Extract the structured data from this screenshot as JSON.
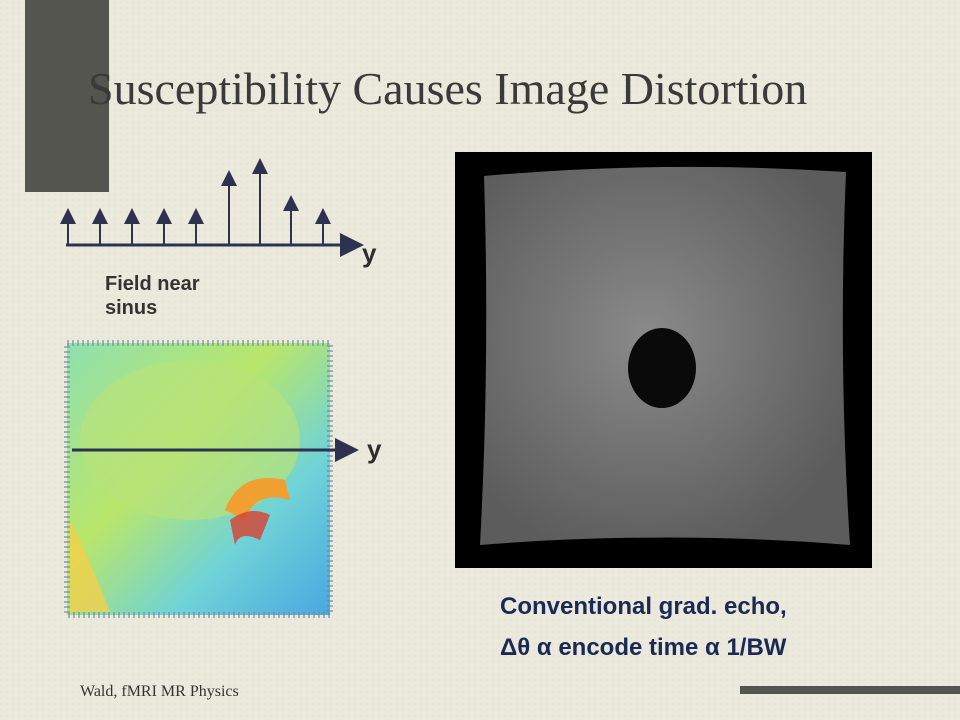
{
  "slide": {
    "title": "Susceptibility Causes Image Distortion",
    "field_diagram": {
      "axis_label": "y",
      "caption_lines": [
        "Field near",
        "sinus"
      ]
    },
    "field_map": {
      "axis_label": "y"
    },
    "image_caption": [
      "Conventional grad. echo,",
      "Δθ α encode time α 1/BW"
    ],
    "footer": "Wald, fMRI MR Physics"
  }
}
